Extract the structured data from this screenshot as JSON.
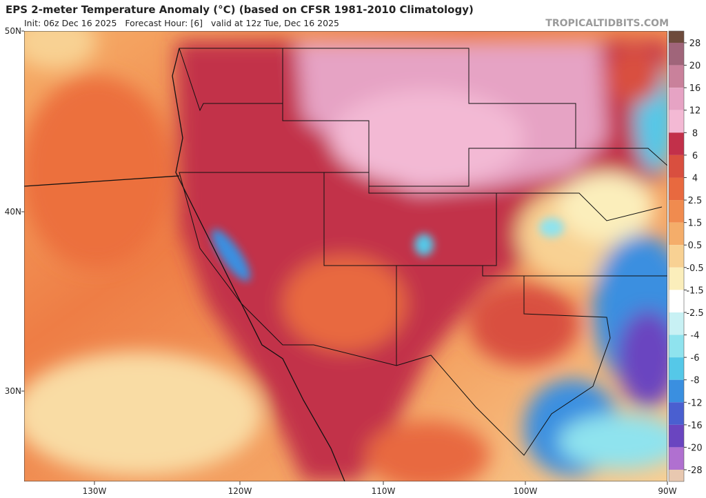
{
  "header": {
    "title": "EPS 2-meter Temperature Anomaly (°C) (based on CFSR 1981-2010 Climatology)",
    "subtitle": "Init: 06z Dec 16 2025   Forecast Hour: [6]   valid at 12z Tue, Dec 16 2025",
    "watermark": "TROPICALTIDBITS.COM"
  },
  "axes": {
    "lat_labels": [
      "50N",
      "40N",
      "30N"
    ],
    "lon_labels": [
      "130W",
      "120W",
      "110W",
      "100W",
      "90W"
    ]
  },
  "colorbar": {
    "labels": [
      "28",
      "20",
      "16",
      "12",
      "8",
      "6",
      "4",
      "2.5",
      "1.5",
      "0.5",
      "-0.5",
      "-1.5",
      "-2.5",
      "-4",
      "-6",
      "-8",
      "-12",
      "-16",
      "-20",
      "-28"
    ],
    "colors": [
      "#6e4b3c",
      "#a0657a",
      "#c9819b",
      "#e6a3c4",
      "#f3b9d4",
      "#c2304a",
      "#d94f3f",
      "#e8693f",
      "#f08b4f",
      "#f4ad6a",
      "#f8d193",
      "#fbeebb",
      "#ffffff",
      "#c8f1f4",
      "#8fe3ee",
      "#55c8e8",
      "#3a8fe0",
      "#4a5fd0",
      "#6a45c0",
      "#b070d0",
      "#d9a0e0",
      "#e8c8b0"
    ]
  }
}
